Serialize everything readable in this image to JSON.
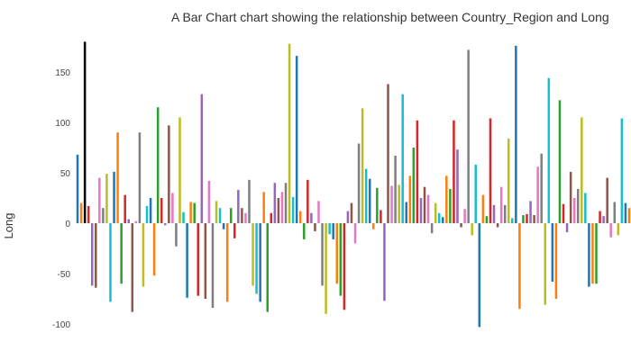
{
  "chart_data": {
    "type": "bar",
    "title": "A Bar Chart chart showing the relationship between Country_Region and Long",
    "xlabel": "",
    "ylabel": "Long",
    "ylim": [
      -135,
      180
    ],
    "yticks": [
      -100,
      -50,
      0,
      50,
      100,
      150
    ],
    "grid": false,
    "legend": "none",
    "palette": [
      "#1f77b4",
      "#ff7f0e",
      "#2ca02c",
      "#d62728",
      "#9467bd",
      "#8c564b",
      "#e377c2",
      "#7f7f7f",
      "#bcbd22",
      "#17becf"
    ],
    "values": [
      68,
      20,
      180,
      17,
      -62,
      -64,
      45,
      15,
      49,
      -78,
      51,
      90,
      -60,
      28,
      4,
      -88,
      2,
      90,
      -63,
      17,
      25,
      -52,
      115,
      25,
      -2,
      97,
      30,
      -23,
      105,
      11,
      -74,
      21,
      20,
      -72,
      128,
      -75,
      42,
      -84,
      22,
      15,
      -6,
      -78,
      15,
      -15,
      33,
      15,
      10,
      43,
      -62,
      -70,
      -78,
      31,
      -88,
      10,
      40,
      25,
      31,
      40,
      178,
      26,
      166,
      12,
      -16,
      43,
      10,
      -8,
      22,
      -62,
      -90,
      -11,
      -16,
      -60,
      -72,
      -86,
      12,
      20,
      -20,
      79,
      114,
      54,
      44,
      -6,
      35,
      13,
      -77,
      138,
      37,
      67,
      38,
      128,
      21,
      47,
      75,
      102,
      25,
      36,
      28,
      -10,
      20,
      10,
      6,
      47,
      34,
      102,
      73,
      -4,
      14,
      172,
      -12,
      58,
      -103,
      28,
      7,
      104,
      18,
      -4,
      36,
      18,
      84,
      5,
      176,
      -85,
      8,
      9,
      22,
      8,
      56,
      69,
      -81,
      144,
      -58,
      -75,
      122,
      19,
      -9,
      51,
      25,
      34,
      105,
      30,
      -63,
      -60,
      -60,
      12,
      7,
      45,
      -14,
      21,
      -12,
      104,
      20,
      15
    ]
  }
}
